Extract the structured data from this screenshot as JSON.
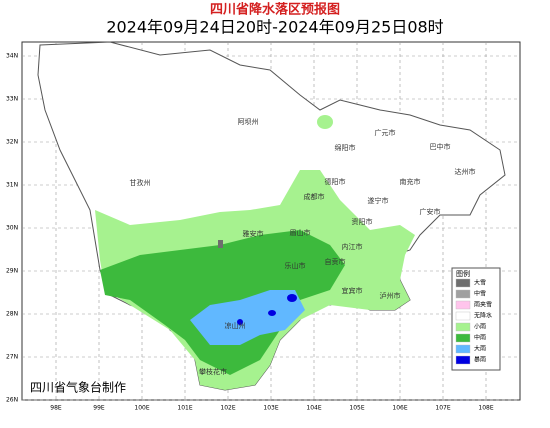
{
  "header": {
    "title": "四川省降水落区预报图",
    "subtitle": "2024年09月24日20时-2024年09月25日08时"
  },
  "latitudes": [
    "34N",
    "33N",
    "32N",
    "31N",
    "30N",
    "29N",
    "28N",
    "27N",
    "26N"
  ],
  "longitudes": [
    "98E",
    "99E",
    "100E",
    "101E",
    "102E",
    "103E",
    "104E",
    "105E",
    "106E",
    "107E",
    "108E"
  ],
  "cities": [
    "阿坝州",
    "甘孜州",
    "绵阳市",
    "广元市",
    "巴中市",
    "达州市",
    "南充市",
    "德阳市",
    "成都市",
    "遂宁市",
    "广安市",
    "眉山市",
    "资阳市",
    "雅安市",
    "内江市",
    "乐山市",
    "自贡市",
    "宜宾市",
    "泸州市",
    "凉山州",
    "攀枝花市"
  ],
  "legend": {
    "title": "图例",
    "items": [
      {
        "label": "大雪",
        "color": "#6e6e6e"
      },
      {
        "label": "中雪",
        "color": "#a0a0a0"
      },
      {
        "label": "雨夹雪",
        "color": "#ffc4ec"
      },
      {
        "label": "无降水",
        "color": "#ffffff"
      },
      {
        "label": "小雨",
        "color": "#a6f28f"
      },
      {
        "label": "中雨",
        "color": "#3dba3d"
      },
      {
        "label": "大雨",
        "color": "#61b8ff"
      },
      {
        "label": "暴雨",
        "color": "#0000e1"
      }
    ]
  },
  "footer": "四川省气象台制作"
}
